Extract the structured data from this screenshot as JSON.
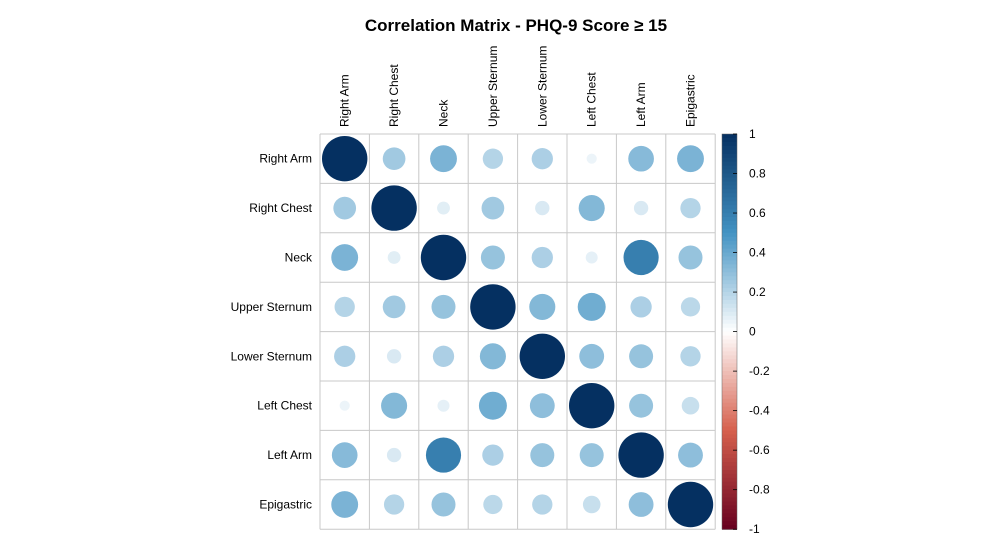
{
  "chart_data": {
    "type": "heatmap",
    "title": "Correlation Matrix - PHQ-9 Score ≥ 15",
    "variables": [
      "Right Arm",
      "Right Chest",
      "Neck",
      "Upper Sternum",
      "Lower Sternum",
      "Left Chest",
      "Left Arm",
      "Epigastric"
    ],
    "matrix": [
      [
        1.0,
        0.25,
        0.35,
        0.2,
        0.22,
        0.05,
        0.32,
        0.35
      ],
      [
        0.25,
        1.0,
        0.08,
        0.25,
        0.1,
        0.33,
        0.1,
        0.2
      ],
      [
        0.35,
        0.08,
        1.0,
        0.28,
        0.22,
        0.07,
        0.6,
        0.28
      ],
      [
        0.2,
        0.25,
        0.28,
        1.0,
        0.33,
        0.38,
        0.22,
        0.18
      ],
      [
        0.22,
        0.1,
        0.22,
        0.33,
        1.0,
        0.3,
        0.28,
        0.2
      ],
      [
        0.05,
        0.33,
        0.07,
        0.38,
        0.3,
        1.0,
        0.28,
        0.15
      ],
      [
        0.32,
        0.1,
        0.6,
        0.22,
        0.28,
        0.28,
        1.0,
        0.3
      ],
      [
        0.35,
        0.2,
        0.28,
        0.18,
        0.2,
        0.15,
        0.3,
        1.0
      ]
    ],
    "colorbar": {
      "min": -1,
      "max": 1,
      "ticks": [
        "1",
        "0.8",
        "0.6",
        "0.4",
        "0.2",
        "0",
        "-0.2",
        "-0.4",
        "-0.6",
        "-0.8",
        "-1"
      ],
      "tick_values": [
        1,
        0.8,
        0.6,
        0.4,
        0.2,
        0,
        -0.2,
        -0.4,
        -0.6,
        -0.8,
        -1
      ],
      "placement": "right"
    },
    "colors": {
      "negative_end": "#67001f",
      "negative_mid": "#d6604d",
      "zero": "#ffffff",
      "positive_mid": "#4393c3",
      "positive_end": "#053061",
      "grid": "#c8c8c8"
    }
  }
}
